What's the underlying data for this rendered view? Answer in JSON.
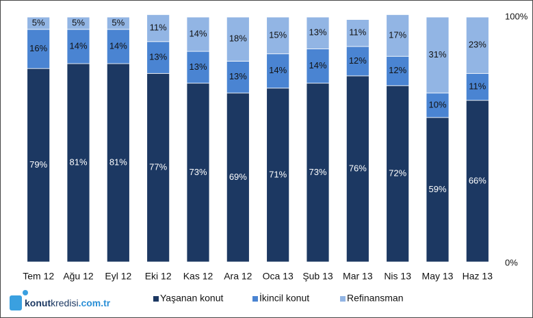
{
  "chart_data": {
    "type": "stacked_bar",
    "categories": [
      "Tem 12",
      "Ağu 12",
      "Eyl 12",
      "Eki 12",
      "Kas 12",
      "Ara 12",
      "Oca 13",
      "Şub 13",
      "Mar 13",
      "Nis 13",
      "May 13",
      "Haz 13"
    ],
    "series": [
      {
        "name": "Yaşanan konut",
        "color": "#1c3862",
        "label_color": "#ffffff",
        "values": [
          79,
          81,
          81,
          77,
          73,
          69,
          71,
          73,
          76,
          72,
          59,
          66
        ],
        "value_labels": [
          "79%",
          "81%",
          "81%",
          "77%",
          "73%",
          "69%",
          "71%",
          "73%",
          "76%",
          "72%",
          "59%",
          "66%"
        ]
      },
      {
        "name": "İkincil konut",
        "color": "#4a84d2",
        "label_color": "#111111",
        "values": [
          16,
          14,
          14,
          13,
          13,
          13,
          14,
          14,
          12,
          12,
          10,
          11
        ],
        "value_labels": [
          "16%",
          "14%",
          "14%",
          "13%",
          "13%",
          "13%",
          "14%",
          "14%",
          "12%",
          "12%",
          "10%",
          "11%"
        ]
      },
      {
        "name": "Refinansman",
        "color": "#92b5e4",
        "label_color": "#111111",
        "values": [
          5,
          5,
          5,
          11,
          14,
          18,
          15,
          13,
          11,
          17,
          31,
          23
        ],
        "value_labels": [
          "5%",
          "5%",
          "5%",
          "11%",
          "14%",
          "18%",
          "15%",
          "13%",
          "11%",
          "17%",
          "31%",
          "23%"
        ]
      }
    ],
    "ylim": [
      0,
      100
    ],
    "yticks": [
      {
        "value": 0,
        "label": "0%"
      },
      {
        "value": 100,
        "label": "100%"
      }
    ],
    "axis_side": "right",
    "legend": "bottom"
  },
  "logo": {
    "part1": "konut",
    "part2": "kredisi",
    "part3": ".com.tr"
  }
}
